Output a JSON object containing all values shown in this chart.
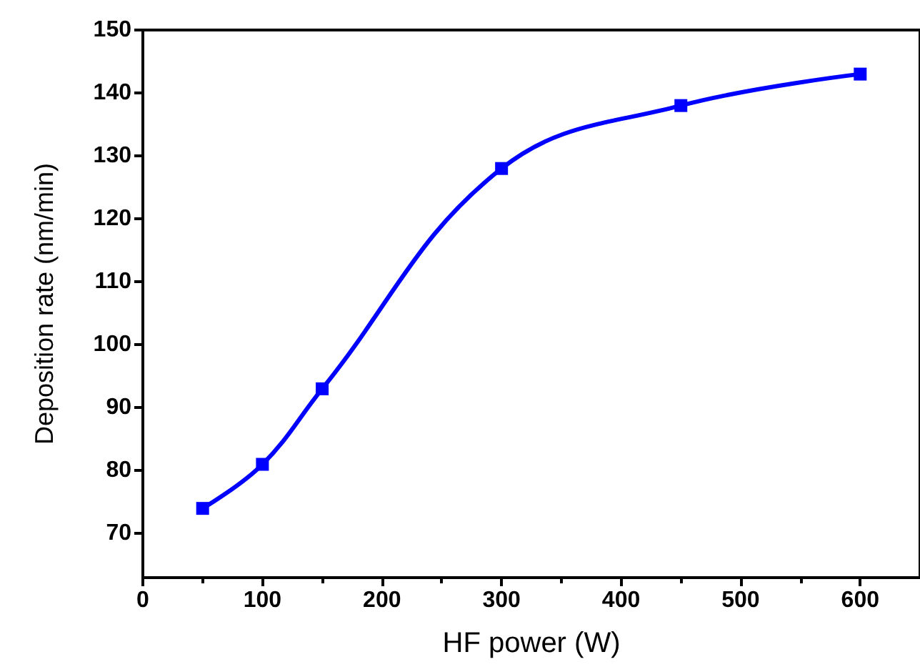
{
  "chart_data": {
    "type": "line",
    "xlabel": "HF power (W)",
    "ylabel": "Deposition rate (nm/min)",
    "x": [
      50,
      100,
      150,
      300,
      450,
      600
    ],
    "series": [
      {
        "color": "#0000ff",
        "values": [
          74,
          81,
          93,
          128,
          138,
          143
        ]
      }
    ],
    "xlim": [
      0,
      650
    ],
    "xticks": [
      0,
      100,
      200,
      300,
      400,
      500,
      600
    ],
    "ylim": [
      63,
      150
    ],
    "yticks": [
      70,
      80,
      90,
      100,
      110,
      120,
      130,
      140,
      150
    ],
    "grid": false,
    "marker": "square",
    "line_style": "solid"
  }
}
